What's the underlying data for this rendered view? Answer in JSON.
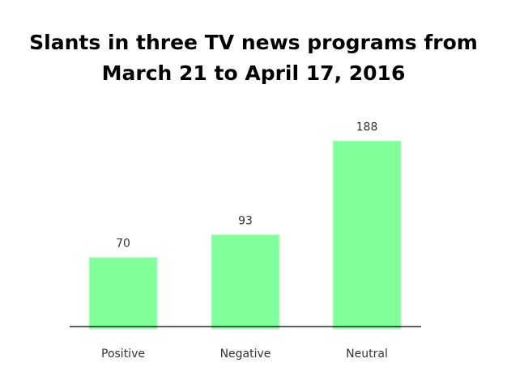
{
  "chart_data": {
    "type": "bar",
    "title_lines": [
      "Slants in three TV news programs  from",
      "March 21 to April 17, 2016"
    ],
    "xlabel": "",
    "ylabel": "",
    "categories": [
      "Positive",
      "Negative",
      "Neutral"
    ],
    "values": [
      70,
      93,
      188
    ],
    "data_labels": [
      "70",
      "93",
      "188"
    ],
    "bar_color": "#80ff9b",
    "bar_edge_color": "#c9f5d2",
    "axis_color": "#000000",
    "ylim": [
      0,
      200
    ],
    "grid": false,
    "legend": "none"
  }
}
